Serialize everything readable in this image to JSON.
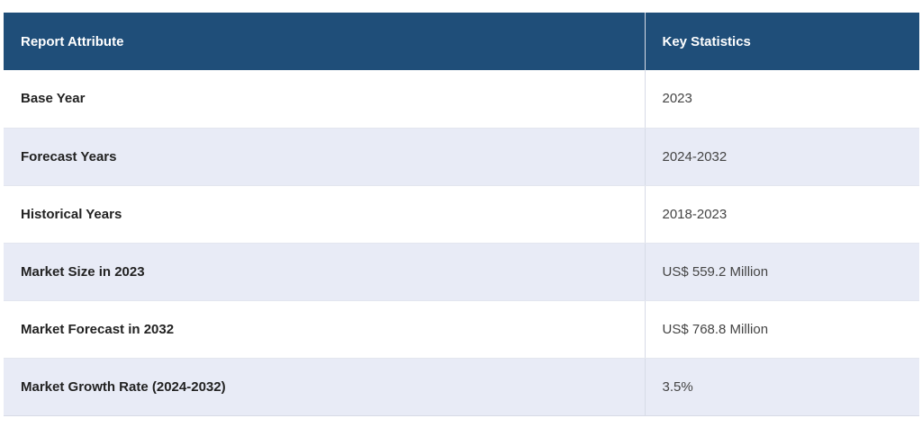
{
  "table": {
    "headers": [
      "Report Attribute",
      "Key Statistics"
    ],
    "rows": [
      [
        "Base Year",
        "2023"
      ],
      [
        "Forecast Years",
        "2024-2032"
      ],
      [
        "Historical Years",
        "2018-2023"
      ],
      [
        "Market Size in 2023",
        "US$ 559.2 Million"
      ],
      [
        "Market Forecast in 2032",
        "US$ 768.8 Million"
      ],
      [
        "Market Growth Rate (2024-2032)",
        "3.5%"
      ]
    ]
  },
  "colors": {
    "header_bg": "#1f4e79",
    "header_text": "#ffffff",
    "row_alt_bg": "#e8ebf6",
    "row_bg": "#ffffff"
  }
}
